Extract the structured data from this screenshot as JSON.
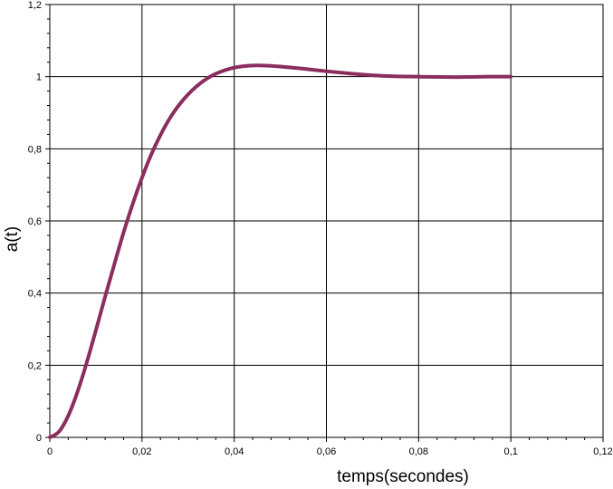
{
  "chart_data": {
    "type": "line",
    "title": "",
    "xlabel": "temps(secondes)",
    "ylabel": "a(t)",
    "xlim": [
      0,
      0.12
    ],
    "ylim": [
      0,
      1.2
    ],
    "grid": true,
    "x_ticks": [
      0,
      0.02,
      0.04,
      0.06,
      0.08,
      0.1,
      0.12
    ],
    "x_tick_labels": [
      "0",
      "0,02",
      "0,04",
      "0,06",
      "0,08",
      "0,1",
      "0,12"
    ],
    "y_ticks": [
      0,
      0.2,
      0.4,
      0.6,
      0.8,
      1.0,
      1.2
    ],
    "y_tick_labels": [
      "0",
      "0,2",
      "0,4",
      "0,6",
      "0,8",
      "1",
      "1,2"
    ],
    "series": [
      {
        "color": "#8b2d5e",
        "x": [
          0,
          0.002,
          0.004,
          0.006,
          0.008,
          0.01,
          0.012,
          0.014,
          0.016,
          0.018,
          0.02,
          0.022,
          0.024,
          0.026,
          0.028,
          0.03,
          0.032,
          0.034,
          0.036,
          0.038,
          0.04,
          0.042,
          0.044,
          0.046,
          0.048,
          0.05,
          0.055,
          0.06,
          0.065,
          0.07,
          0.075,
          0.08,
          0.085,
          0.09,
          0.095,
          0.1
        ],
        "y": [
          0,
          0.016,
          0.06,
          0.126,
          0.207,
          0.297,
          0.39,
          0.48,
          0.568,
          0.648,
          0.72,
          0.784,
          0.838,
          0.884,
          0.921,
          0.951,
          0.975,
          0.994,
          1.008,
          1.018,
          1.025,
          1.029,
          1.031,
          1.031,
          1.03,
          1.028,
          1.022,
          1.015,
          1.009,
          1.004,
          1.001,
          1.0,
          0.999,
          0.999,
          1.0,
          1.0
        ]
      }
    ]
  },
  "colors": {
    "background": "#ffffff",
    "grid": "#000000",
    "curve": "#8b2d5e"
  }
}
